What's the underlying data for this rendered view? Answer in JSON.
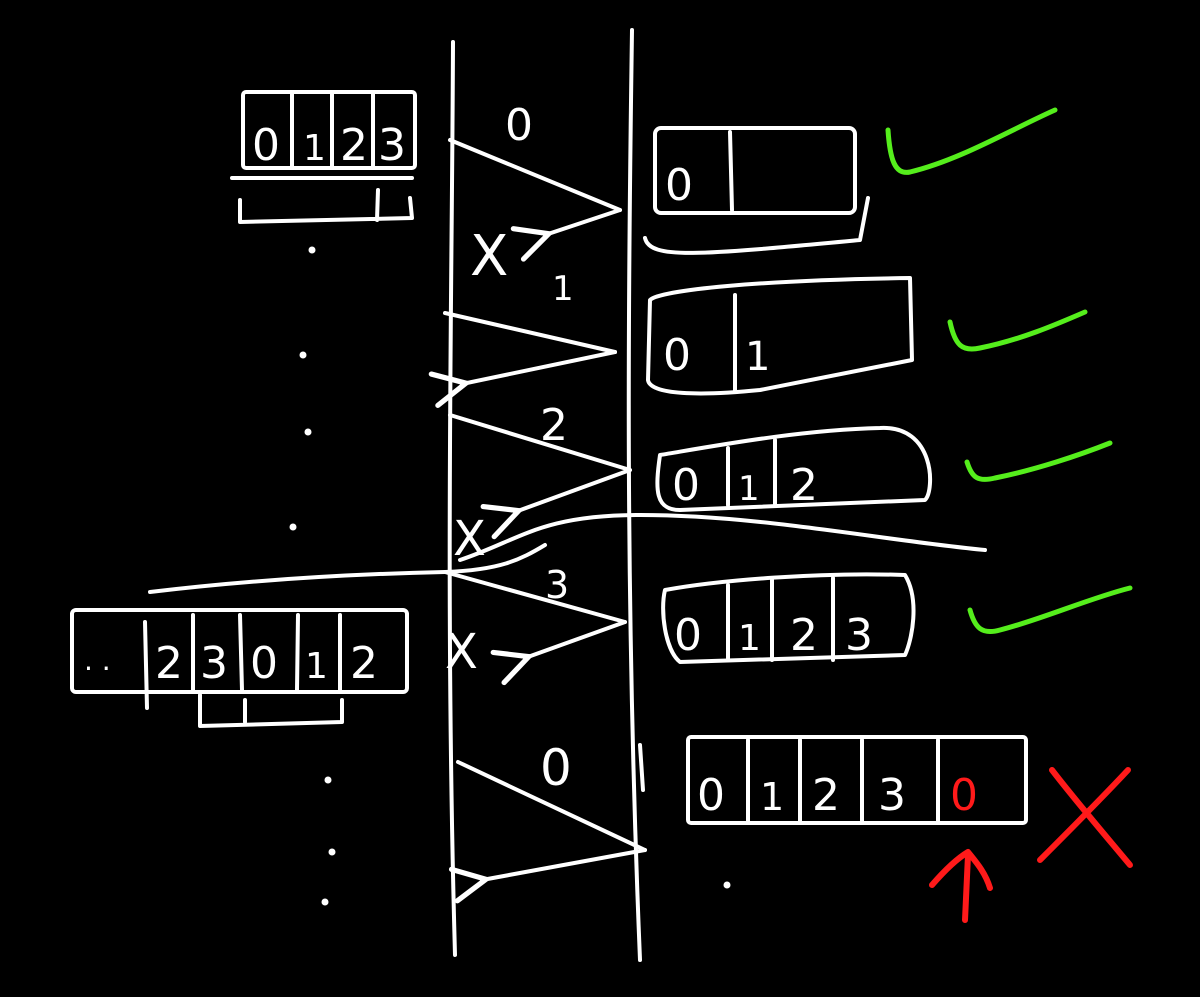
{
  "colors": {
    "background": "#000000",
    "stroke": "#ffffff",
    "ok": "#55ee1c",
    "error": "#ff1a1a"
  },
  "sender_window": {
    "initial": [
      "0",
      "1",
      "2",
      "3"
    ],
    "later_prefix": "· ·",
    "later": [
      "2",
      "3",
      "0",
      "1",
      "2"
    ]
  },
  "packets": [
    {
      "seq": "0",
      "ack_lost": true
    },
    {
      "seq": "1",
      "ack_lost": false
    },
    {
      "seq": "2",
      "ack_lost": true
    },
    {
      "seq": "3",
      "ack_lost": true
    },
    {
      "seq": "0",
      "ack_lost": false
    }
  ],
  "receiver_buffers": [
    {
      "cells": [
        "0",
        ""
      ],
      "status": "ok"
    },
    {
      "cells": [
        "0",
        "1",
        ""
      ],
      "status": "ok"
    },
    {
      "cells": [
        "0",
        "1",
        "2"
      ],
      "status": "ok"
    },
    {
      "cells": [
        "0",
        "1",
        "2",
        "3"
      ],
      "status": "ok"
    },
    {
      "cells": [
        "0",
        "1",
        "2",
        "3",
        "0"
      ],
      "status": "error",
      "error_cell": 4
    }
  ],
  "symbols": {
    "lost": "X",
    "check": "✓",
    "cross": "X",
    "ellipsis": "·"
  }
}
